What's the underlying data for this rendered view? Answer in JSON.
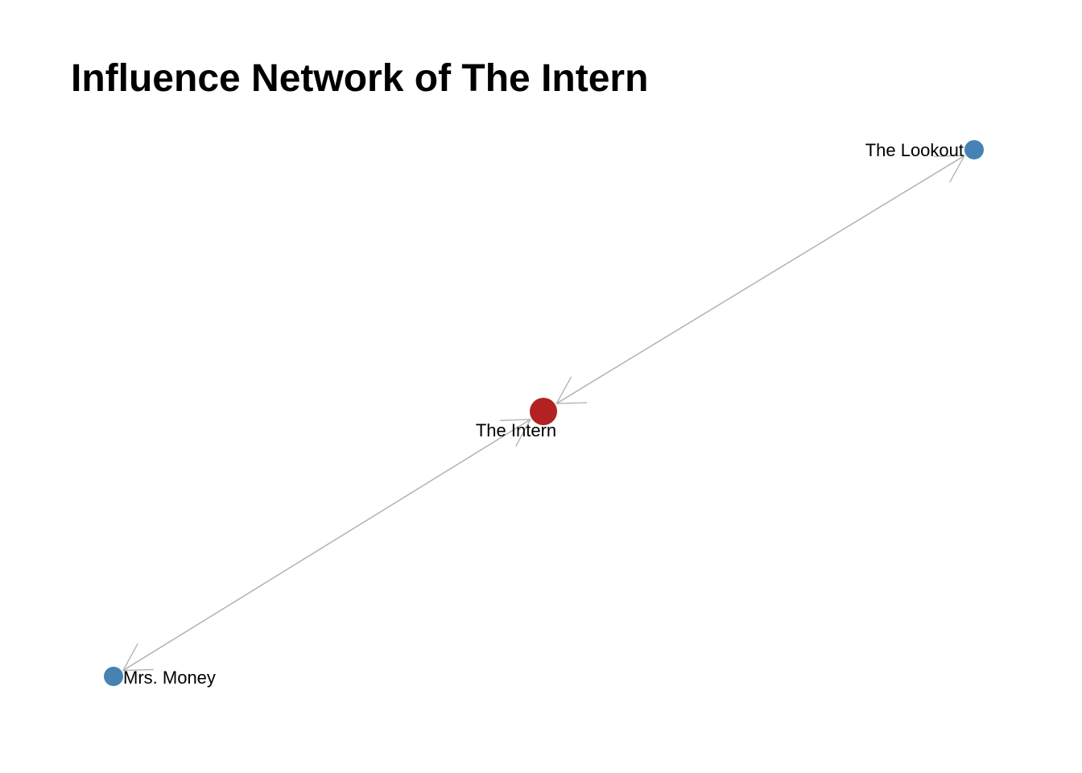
{
  "title": "Influence Network of The Intern",
  "colors": {
    "focus_node": "#b22222",
    "other_node": "#4682b4",
    "edge": "#b0b0b0",
    "label": "#000000"
  },
  "nodes": [
    {
      "id": "intern",
      "label": "The Intern",
      "role": "focus"
    },
    {
      "id": "lookout",
      "label": "The Lookout",
      "role": "other"
    },
    {
      "id": "money",
      "label": "Mrs. Money",
      "role": "other"
    }
  ],
  "edges": [
    {
      "from": "intern",
      "to": "lookout"
    },
    {
      "from": "lookout",
      "to": "intern"
    },
    {
      "from": "intern",
      "to": "money"
    },
    {
      "from": "money",
      "to": "intern"
    }
  ]
}
